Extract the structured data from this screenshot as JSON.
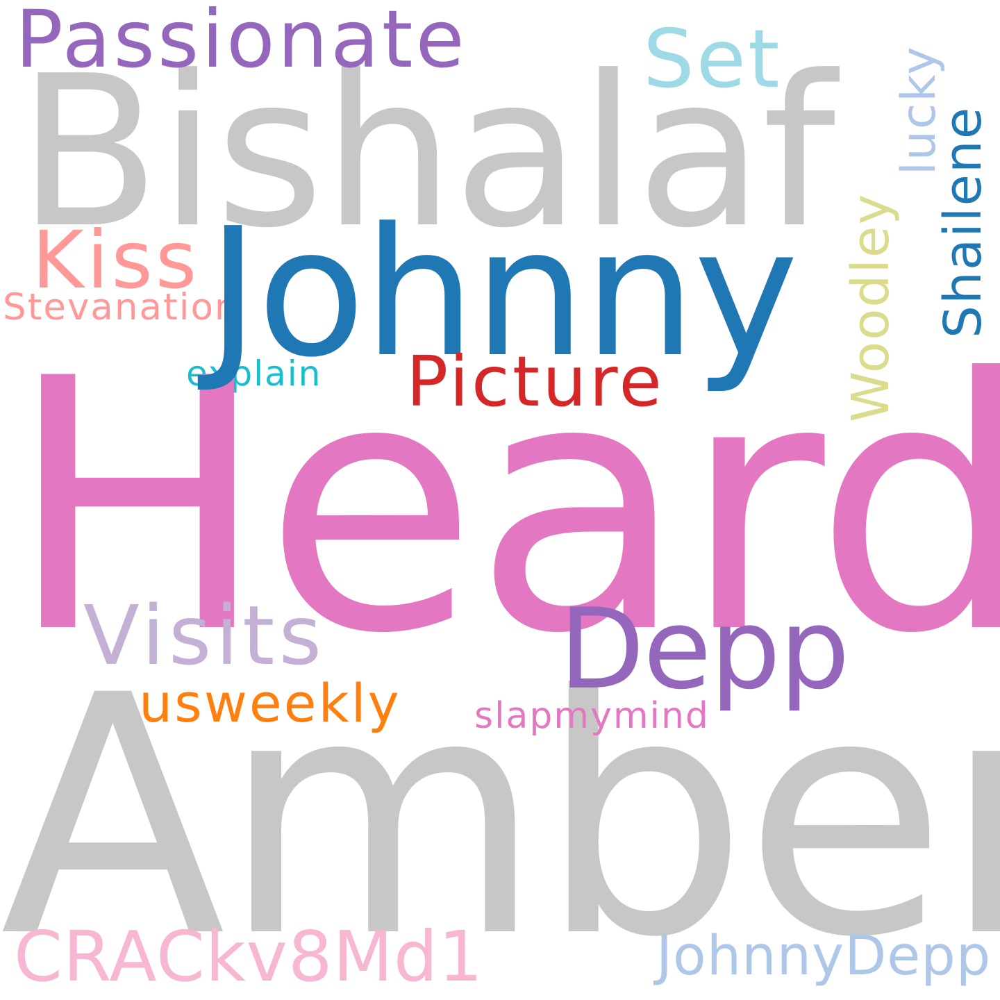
{
  "words": {
    "heard": {
      "text": "Heard",
      "color": "#e377c2"
    },
    "amber": {
      "text": "Amber",
      "color": "#c7c7c7"
    },
    "bishalaf": {
      "text": "Bishalaf",
      "color": "#c7c7c7"
    },
    "johnny": {
      "text": "Johnny",
      "color": "#1f77b4"
    },
    "passionate": {
      "text": "Passionate",
      "color": "#9467bd"
    },
    "set": {
      "text": "Set",
      "color": "#9edae5"
    },
    "kiss": {
      "text": "Kiss",
      "color": "#ff9896"
    },
    "stevanation": {
      "text": "Stevanation",
      "color": "#ff9896"
    },
    "explain": {
      "text": "explain",
      "color": "#17becf"
    },
    "picture": {
      "text": "Picture",
      "color": "#d62728"
    },
    "visits": {
      "text": "Visits",
      "color": "#c5b0d5"
    },
    "depp": {
      "text": "Depp",
      "color": "#9467bd"
    },
    "usweekly": {
      "text": "usweekly",
      "color": "#ff7f0e"
    },
    "slapmymind": {
      "text": "slapmymind",
      "color": "#e377c2"
    },
    "crackv8md1": {
      "text": "CRACkv8Md1",
      "color": "#f7b6d2"
    },
    "johnnydepp": {
      "text": "JohnnyDepp",
      "color": "#aec7e8"
    },
    "lucky": {
      "text": "lucky",
      "color": "#aec7e8"
    },
    "shailene": {
      "text": "Shailene",
      "color": "#1f77b4"
    },
    "woodley": {
      "text": "Woodley",
      "color": "#dbdb8d"
    }
  }
}
